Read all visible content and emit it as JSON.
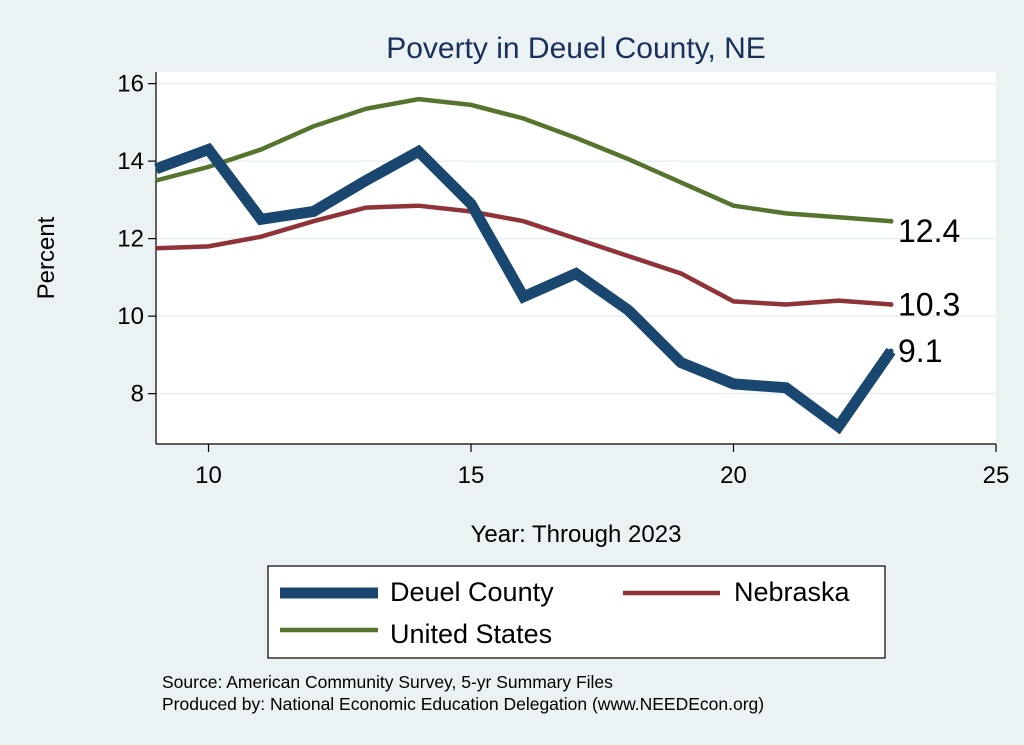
{
  "chart_data": {
    "type": "line",
    "title": "Poverty in Deuel County, NE",
    "xlabel": "Year: Through 2023",
    "ylabel": "Percent",
    "xlim": [
      9,
      25
    ],
    "ylim": [
      6.7,
      16.3
    ],
    "xticks": [
      "10",
      "15",
      "20",
      "25"
    ],
    "yticks": [
      "8",
      "10",
      "12",
      "14",
      "16"
    ],
    "grid": true,
    "legend_position": "bottom",
    "series": [
      {
        "name": "Deuel County",
        "color": "#1a4770",
        "x": [
          9,
          10,
          11,
          12,
          13,
          14,
          15,
          16,
          17,
          18,
          19,
          20,
          21,
          22,
          23
        ],
        "values": [
          13.8,
          14.3,
          12.5,
          12.7,
          13.5,
          14.25,
          12.9,
          10.5,
          11.1,
          10.15,
          8.8,
          8.25,
          8.15,
          7.15,
          9.1
        ],
        "end_label": "9.1"
      },
      {
        "name": "Nebraska",
        "color": "#903338",
        "x": [
          9,
          10,
          11,
          12,
          13,
          14,
          15,
          16,
          17,
          18,
          19,
          20,
          21,
          22,
          23
        ],
        "values": [
          11.75,
          11.8,
          12.05,
          12.45,
          12.8,
          12.85,
          12.7,
          12.45,
          12.0,
          11.55,
          11.1,
          10.38,
          10.3,
          10.4,
          10.3
        ],
        "end_label": "10.3"
      },
      {
        "name": "United States",
        "color": "#55752f",
        "x": [
          9,
          10,
          11,
          12,
          13,
          14,
          15,
          16,
          17,
          18,
          19,
          20,
          21,
          22,
          23
        ],
        "values": [
          13.5,
          13.85,
          14.3,
          14.9,
          15.35,
          15.6,
          15.45,
          15.1,
          14.6,
          14.05,
          13.45,
          12.85,
          12.65,
          12.55,
          12.45
        ],
        "end_label": "12.4"
      }
    ],
    "notes": [
      "Source: American Community Survey, 5-yr Summary Files",
      "Produced by: National Economic Education Delegation (www.NEEDEcon.org)"
    ]
  }
}
